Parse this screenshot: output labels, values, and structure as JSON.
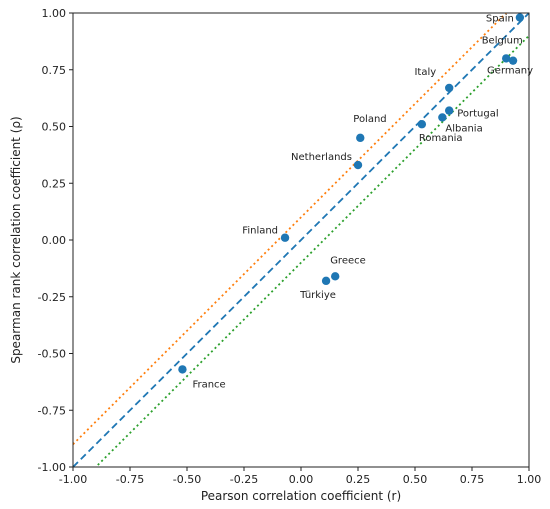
{
  "chart_data": {
    "type": "scatter",
    "xlabel": "Pearson correlation coefficient (r)",
    "ylabel": "Spearman rank correlation coefficient (ρ)",
    "xlim": [
      -1.0,
      1.0
    ],
    "ylim": [
      -1.0,
      1.0
    ],
    "grid": false,
    "x_ticks": [
      "-1.00",
      "-0.75",
      "-0.50",
      "-0.25",
      "0.00",
      "0.25",
      "0.50",
      "0.75",
      "1.00"
    ],
    "y_ticks": [
      "-1.00",
      "-0.75",
      "-0.50",
      "-0.25",
      "0.00",
      "0.25",
      "0.50",
      "0.75",
      "1.00"
    ],
    "points": [
      {
        "label": "Spain",
        "x": 0.96,
        "y": 0.98
      },
      {
        "label": "Belgium",
        "x": 0.9,
        "y": 0.8
      },
      {
        "label": "Germany",
        "x": 0.93,
        "y": 0.79
      },
      {
        "label": "Italy",
        "x": 0.65,
        "y": 0.67
      },
      {
        "label": "Portugal",
        "x": 0.65,
        "y": 0.57
      },
      {
        "label": "Albania",
        "x": 0.62,
        "y": 0.54
      },
      {
        "label": "Romania",
        "x": 0.53,
        "y": 0.51
      },
      {
        "label": "Poland",
        "x": 0.26,
        "y": 0.45
      },
      {
        "label": "Netherlands",
        "x": 0.25,
        "y": 0.33
      },
      {
        "label": "Finland",
        "x": -0.07,
        "y": 0.01
      },
      {
        "label": "Greece",
        "x": 0.15,
        "y": -0.16
      },
      {
        "label": "Türkiye",
        "x": 0.11,
        "y": -0.18
      },
      {
        "label": "France",
        "x": -0.52,
        "y": -0.57
      }
    ],
    "reference_lines": [
      {
        "style": "dashed",
        "color": "#1f77b4",
        "intercept": 0.0
      },
      {
        "style": "dotted",
        "color": "#ff7f0e",
        "intercept": 0.1
      },
      {
        "style": "dotted",
        "color": "#2ca02c",
        "intercept": -0.1
      }
    ],
    "marker_color": "#1f77b4"
  }
}
